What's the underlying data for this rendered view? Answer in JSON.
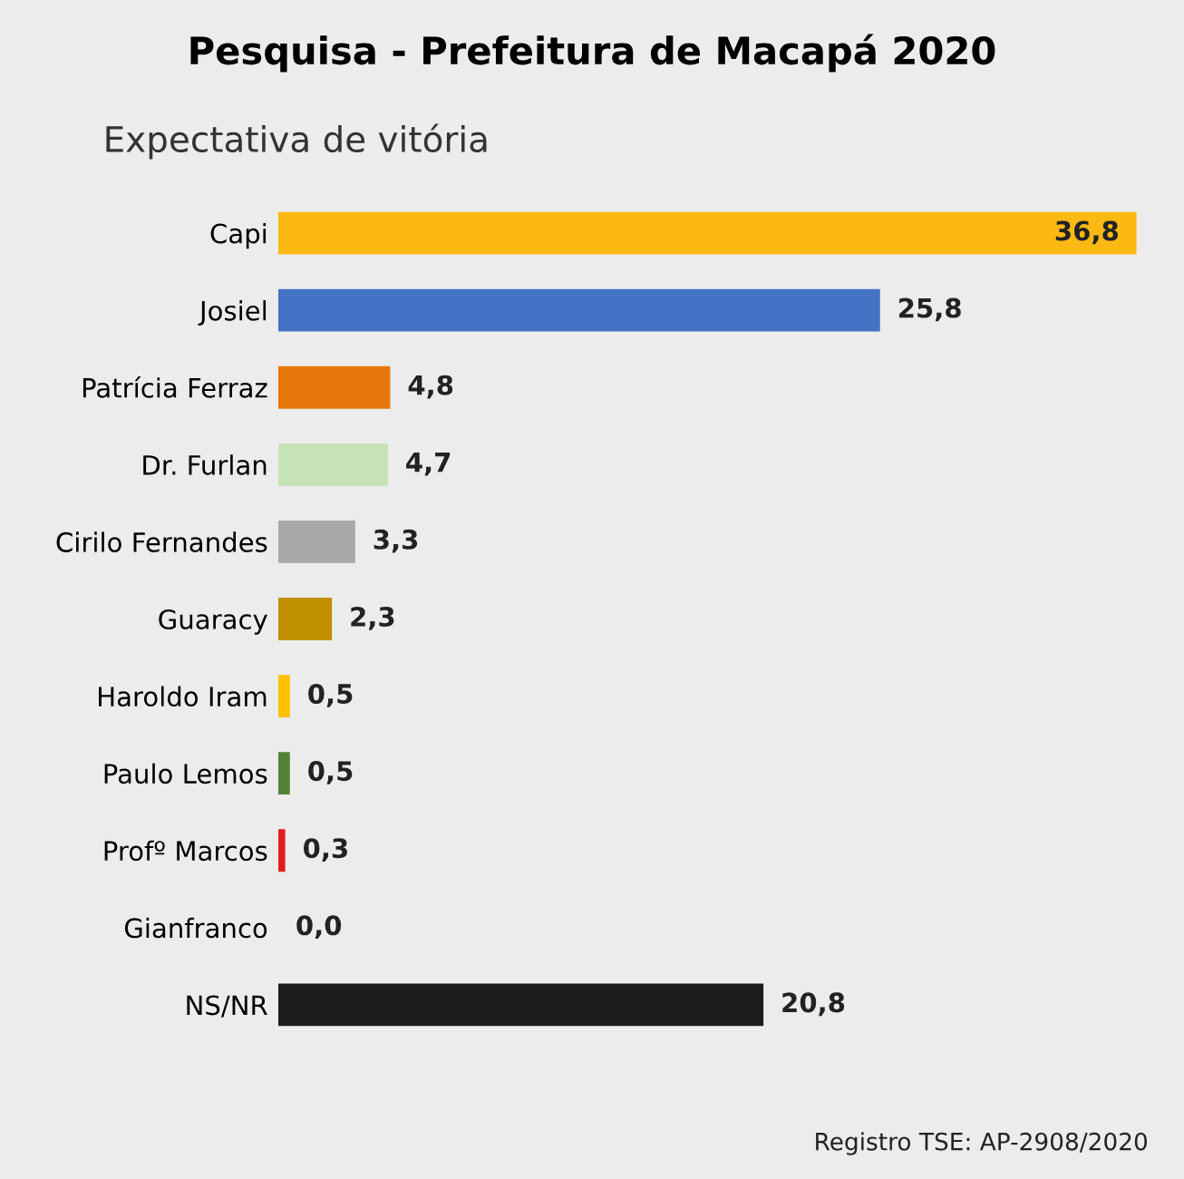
{
  "chart_data": {
    "type": "bar",
    "orientation": "horizontal",
    "title": "Pesquisa - Prefeitura de Macapá 2020",
    "subtitle": "Expectativa de vitória",
    "categories": [
      "Capi",
      "Josiel",
      "Patrícia Ferraz",
      "Dr. Furlan",
      "Cirilo Fernandes",
      "Guaracy",
      "Haroldo Iram",
      "Paulo Lemos",
      "Profº Marcos",
      "Gianfranco",
      "NS/NR"
    ],
    "values": [
      36.8,
      25.8,
      4.8,
      4.7,
      3.3,
      2.3,
      0.5,
      0.5,
      0.3,
      0.0,
      20.8
    ],
    "colors": [
      "#fdb913",
      "#4472c4",
      "#e8780c",
      "#c6e3b5",
      "#a9a9a9",
      "#c09000",
      "#ffc000",
      "#548235",
      "#e02020",
      "#808080",
      "#1c1c1c"
    ],
    "value_labels": [
      "36,8",
      "25,8",
      "4,8",
      "4,7",
      "3,3",
      "2,3",
      "0,5",
      "0,5",
      "0,3",
      "0,0",
      "20,8"
    ],
    "annotations": [
      "Registro TSE: AP-2908/2020"
    ]
  }
}
